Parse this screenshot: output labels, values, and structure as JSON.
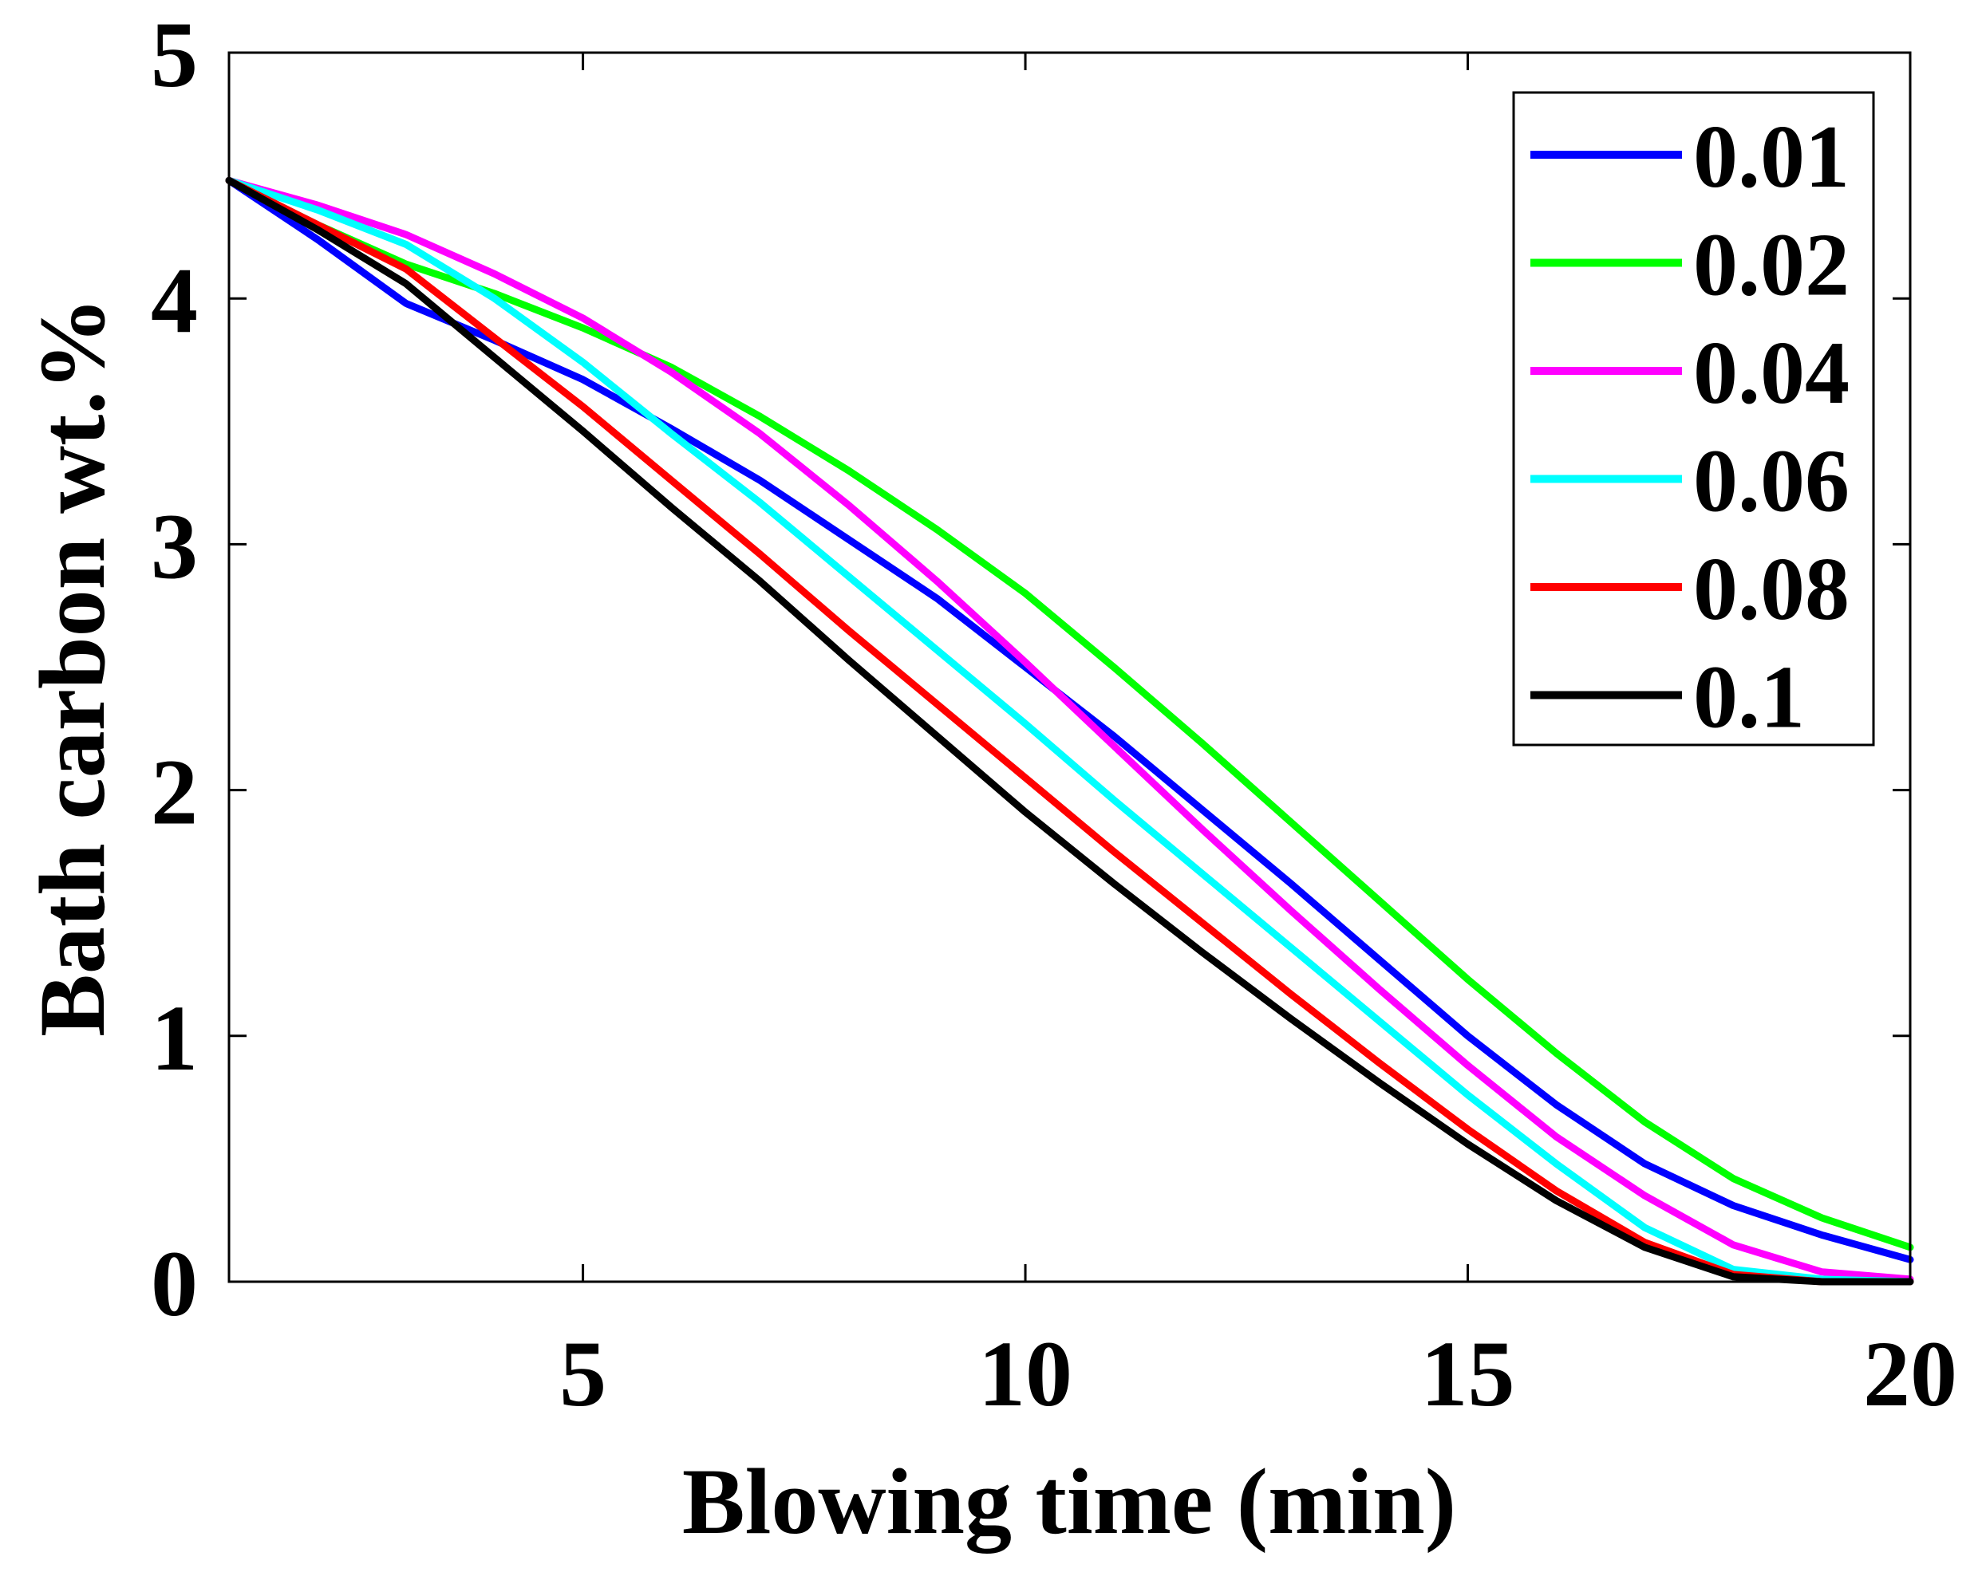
{
  "chart_data": {
    "type": "line",
    "title": "",
    "xlabel": "Blowing time (min)",
    "ylabel": "Bath carbon wt.%",
    "xlim": [
      1,
      20
    ],
    "ylim": [
      0,
      5
    ],
    "xticks": [
      5,
      10,
      15,
      20
    ],
    "yticks": [
      0,
      1,
      2,
      3,
      4,
      5
    ],
    "grid": false,
    "legend_position": "top-right",
    "x": [
      1,
      2,
      3,
      4,
      5,
      6,
      7,
      8,
      9,
      10,
      11,
      12,
      13,
      14,
      15,
      16,
      17,
      18,
      19,
      20
    ],
    "series": [
      {
        "name": "0.01",
        "color": "#0000ff",
        "values": [
          4.48,
          4.24,
          3.98,
          3.83,
          3.67,
          3.47,
          3.26,
          3.02,
          2.78,
          2.5,
          2.22,
          1.92,
          1.62,
          1.31,
          1.0,
          0.72,
          0.48,
          0.31,
          0.19,
          0.09
        ]
      },
      {
        "name": "0.02",
        "color": "#00ff00",
        "values": [
          4.48,
          4.3,
          4.14,
          4.02,
          3.88,
          3.72,
          3.52,
          3.3,
          3.06,
          2.8,
          2.5,
          2.19,
          1.87,
          1.55,
          1.23,
          0.93,
          0.65,
          0.42,
          0.26,
          0.14
        ]
      },
      {
        "name": "0.04",
        "color": "#ff00ff",
        "values": [
          4.48,
          4.38,
          4.26,
          4.1,
          3.92,
          3.7,
          3.45,
          3.16,
          2.85,
          2.52,
          2.18,
          1.84,
          1.51,
          1.19,
          0.88,
          0.59,
          0.35,
          0.15,
          0.04,
          0.01
        ]
      },
      {
        "name": "0.06",
        "color": "#00ffff",
        "values": [
          4.48,
          4.36,
          4.22,
          4.0,
          3.74,
          3.45,
          3.17,
          2.87,
          2.57,
          2.27,
          1.96,
          1.66,
          1.36,
          1.06,
          0.76,
          0.48,
          0.22,
          0.05,
          0.01,
          0.0
        ]
      },
      {
        "name": "0.08",
        "color": "#ff0000",
        "values": [
          4.48,
          4.3,
          4.12,
          3.84,
          3.56,
          3.26,
          2.96,
          2.65,
          2.35,
          2.05,
          1.75,
          1.46,
          1.17,
          0.89,
          0.62,
          0.37,
          0.16,
          0.03,
          0.0,
          0.0
        ]
      },
      {
        "name": "0.1",
        "color": "#000000",
        "values": [
          4.48,
          4.28,
          4.06,
          3.76,
          3.46,
          3.15,
          2.85,
          2.53,
          2.22,
          1.91,
          1.62,
          1.34,
          1.07,
          0.81,
          0.56,
          0.33,
          0.14,
          0.02,
          0.0,
          0.0
        ]
      }
    ]
  }
}
